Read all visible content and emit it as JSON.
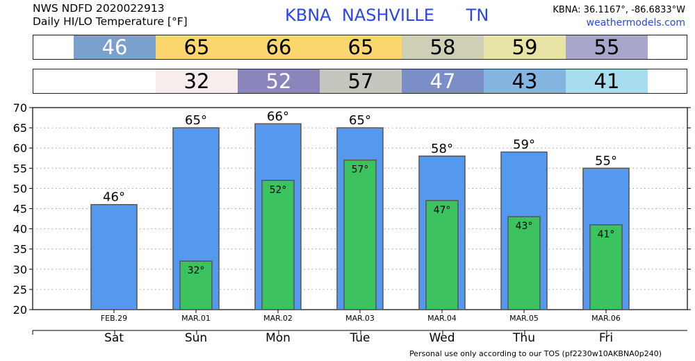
{
  "header": {
    "line1": "NWS NDFD 2020022913",
    "line2": "Daily HI/LO Temperature [°F]",
    "station": "KBNA  NASHVILLE      TN",
    "coords": "KBNA: 36.1167°, -86.6833°W",
    "website": "weathermodels.com"
  },
  "hi_strip": [
    {
      "value": "46",
      "color": "#7aa0cd",
      "text_color": "#ffffff"
    },
    {
      "value": "65",
      "color": "#fcd76d",
      "text_color": "#000000"
    },
    {
      "value": "66",
      "color": "#fcd76d",
      "text_color": "#000000"
    },
    {
      "value": "65",
      "color": "#fcd76d",
      "text_color": "#000000"
    },
    {
      "value": "58",
      "color": "#cfcfb6",
      "text_color": "#000000"
    },
    {
      "value": "59",
      "color": "#e8e4a6",
      "text_color": "#000000"
    },
    {
      "value": "55",
      "color": "#a7a7cc",
      "text_color": "#000000"
    }
  ],
  "lo_strip": [
    {
      "value": "32",
      "color": "#f8eded",
      "text_color": "#000000"
    },
    {
      "value": "52",
      "color": "#8a86bb",
      "text_color": "#ffffff"
    },
    {
      "value": "57",
      "color": "#c6c6bf",
      "text_color": "#000000"
    },
    {
      "value": "47",
      "color": "#7b8fc6",
      "text_color": "#ffffff"
    },
    {
      "value": "43",
      "color": "#84b5e1",
      "text_color": "#000000"
    },
    {
      "value": "41",
      "color": "#a8ddef",
      "text_color": "#000000"
    }
  ],
  "footer": "Personal use only according to our TOS (pf2230w10AKBNA0p240)",
  "chart_data": {
    "type": "bar",
    "categories": [
      "Sat",
      "Sun",
      "Mon",
      "Tue",
      "Wed",
      "Thu",
      "Fri"
    ],
    "dates": [
      "FEB.29",
      "MAR.01",
      "MAR.02",
      "MAR.03",
      "MAR.04",
      "MAR.05",
      "MAR.06"
    ],
    "series": [
      {
        "values": [
          46,
          65,
          66,
          65,
          58,
          59,
          55
        ],
        "color": "#5599ee"
      },
      {
        "values": [
          null,
          32,
          52,
          57,
          47,
          43,
          41
        ],
        "color": "#3cc35f"
      }
    ],
    "hi_labels": [
      "46°",
      "65°",
      "66°",
      "65°",
      "58°",
      "59°",
      "55°"
    ],
    "lo_labels": [
      "",
      "32°",
      "52°",
      "57°",
      "47°",
      "43°",
      "41°"
    ],
    "ylim": [
      20,
      70
    ],
    "yticks": [
      "20",
      "25",
      "30",
      "35",
      "40",
      "45",
      "50",
      "55",
      "60",
      "65",
      "70"
    ],
    "grid": true
  }
}
